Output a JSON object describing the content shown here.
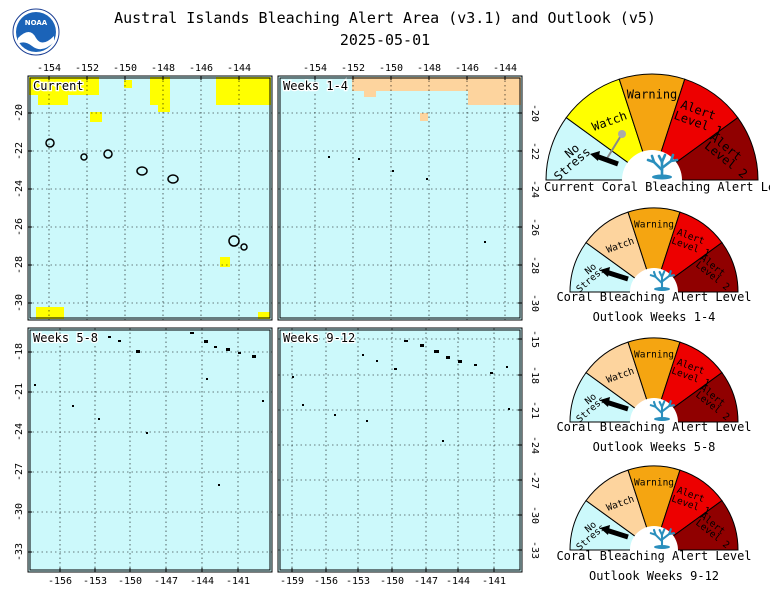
{
  "header": {
    "title": "Austral Islands Bleaching Alert Area (v3.1) and Outlook (v5)",
    "date": "2025-05-01",
    "logo_text": "NOAA"
  },
  "colors": {
    "no_stress": "#ccf9fb",
    "watch": "#ffff00",
    "warning": "#f5a511",
    "alert1": "#ed0000",
    "alert2": "#900000",
    "watch_outlook": "#fdd49e",
    "coral": "#2a8fbd",
    "arrow": "#000000"
  },
  "maps": {
    "current": {
      "label": "Current",
      "x_ticks": [
        "-154",
        "-152",
        "-150",
        "-148",
        "-146",
        "-144"
      ],
      "y_ticks": [
        "-20",
        "-22",
        "-24",
        "-26",
        "-28",
        "-30"
      ]
    },
    "weeks_1_4": {
      "label": "Weeks 1-4",
      "x_ticks": [
        "-154",
        "-152",
        "-150",
        "-148",
        "-146",
        "-144"
      ],
      "y_ticks": [
        "-20",
        "-22",
        "-24",
        "-26",
        "-28",
        "-30"
      ]
    },
    "weeks_5_8": {
      "label": "Weeks 5-8",
      "x_ticks": [
        "-156",
        "-153",
        "-150",
        "-147",
        "-144",
        "-141"
      ],
      "y_ticks": [
        "-18",
        "-21",
        "-24",
        "-27",
        "-30",
        "-33"
      ]
    },
    "weeks_9_12": {
      "label": "Weeks 9-12",
      "x_ticks": [
        "-159",
        "-156",
        "-153",
        "-150",
        "-147",
        "-144",
        "-141"
      ],
      "y_ticks": [
        "-15",
        "-18",
        "-21",
        "-24",
        "-27",
        "-30",
        "-33"
      ]
    }
  },
  "gauges": [
    {
      "labels": {
        "no_stress_1": "No",
        "no_stress_2": "Stress",
        "watch": "Watch",
        "warning": "Warning",
        "alert1_1": "Alert",
        "alert1_2": "Level 1",
        "alert2_1": "Alert",
        "alert2_2": "Level 2"
      },
      "caption_1": "Current Coral Bleaching Alert Level",
      "caption_2": ""
    },
    {
      "labels": {
        "no_stress_1": "No",
        "no_stress_2": "Stress",
        "watch": "Watch",
        "warning": "Warning",
        "alert1_1": "Alert",
        "alert1_2": "Level 1",
        "alert2_1": "Alert",
        "alert2_2": "Level 2"
      },
      "caption_1": "Coral Bleaching Alert Level",
      "caption_2": "Outlook Weeks 1-4"
    },
    {
      "labels": {
        "no_stress_1": "No",
        "no_stress_2": "Stress",
        "watch": "Watch",
        "warning": "Warning",
        "alert1_1": "Alert",
        "alert1_2": "Level 1",
        "alert2_1": "Alert",
        "alert2_2": "Level 2"
      },
      "caption_1": "Coral Bleaching Alert Level",
      "caption_2": "Outlook Weeks 5-8"
    },
    {
      "labels": {
        "no_stress_1": "No",
        "no_stress_2": "Stress",
        "watch": "Watch",
        "warning": "Warning",
        "alert1_1": "Alert",
        "alert1_2": "Level 1",
        "alert2_1": "Alert",
        "alert2_2": "Level 2"
      },
      "caption_1": "Coral Bleaching Alert Level",
      "caption_2": "Outlook Weeks 9-12"
    }
  ]
}
